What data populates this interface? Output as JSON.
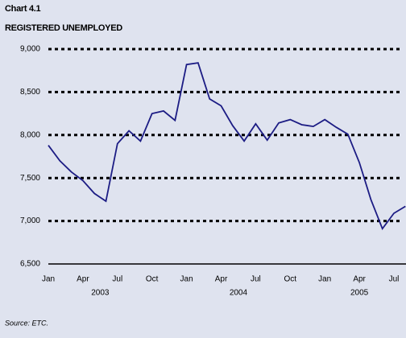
{
  "chart_data": {
    "type": "line",
    "title": "Chart 4.1",
    "subtitle": "REGISTERED UNEMPLOYED",
    "source": "Source: ETC.",
    "categories": [
      "Jan",
      null,
      null,
      "Apr",
      null,
      null,
      "Jul",
      null,
      null,
      "Oct",
      null,
      null,
      "Jan",
      null,
      null,
      "Apr",
      null,
      null,
      "Jul",
      null,
      null,
      "Oct",
      null,
      null,
      "Jan",
      null,
      null,
      "Apr",
      null,
      null,
      "Jul",
      null
    ],
    "groups": [
      {
        "label": "2003",
        "size": 12
      },
      {
        "label": "2004",
        "size": 12
      },
      {
        "label": "2005",
        "size": 8
      }
    ],
    "series": [
      {
        "name": "Registered unemployed",
        "color": "#1c1c84",
        "values": [
          7880,
          7700,
          7570,
          7470,
          7320,
          7230,
          7900,
          8050,
          7930,
          8250,
          8280,
          8170,
          8820,
          8840,
          8420,
          8340,
          8110,
          7930,
          8130,
          7940,
          8140,
          8180,
          8120,
          8100,
          8180,
          8090,
          8010,
          7680,
          7250,
          6910,
          7090,
          7170
        ]
      }
    ],
    "ylim": [
      6500,
      9000
    ],
    "yticks": [
      {
        "value": 6500,
        "label": "6,500"
      },
      {
        "value": 7000,
        "label": "7,000"
      },
      {
        "value": 7500,
        "label": "7,500"
      },
      {
        "value": 8000,
        "label": "8,000"
      },
      {
        "value": 8500,
        "label": "8,500"
      },
      {
        "value": 9000,
        "label": "9,000"
      }
    ],
    "grid": true
  }
}
